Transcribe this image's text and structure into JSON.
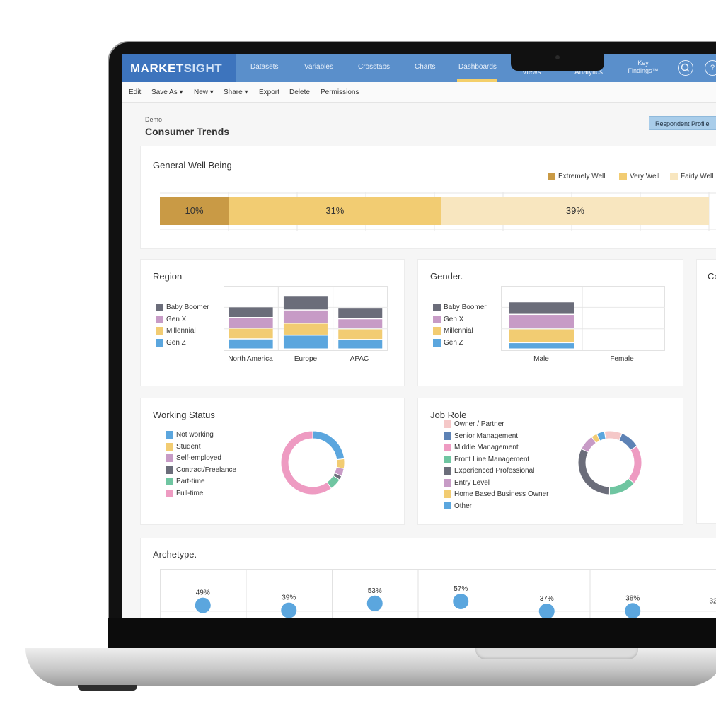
{
  "nav": {
    "brand_part1": "MARKET",
    "brand_part2": "SIGHT",
    "items": [
      "Datasets",
      "Variables",
      "Crosstabs",
      "Charts",
      "Dashboards",
      "Views",
      "Analytics"
    ],
    "key_findings_line1": "Key",
    "key_findings_line2": "Findings™",
    "search_icon": "search-icon",
    "help_icon": "help-icon"
  },
  "toolbar": {
    "items": [
      "Edit",
      "Save As ▾",
      "New ▾",
      "Share ▾",
      "Export",
      "Delete",
      "Permissions"
    ]
  },
  "header": {
    "breadcrumb": "Demo",
    "title": "Consumer Trends",
    "respondent_profile": "Respondent Profile"
  },
  "wellbeing": {
    "title": "General Well Being",
    "legend": [
      "Extremely Well",
      "Very Well",
      "Fairly Well"
    ],
    "segments": [
      {
        "label": "10%",
        "value": 10,
        "color": "#c99a45"
      },
      {
        "label": "31%",
        "value": 31,
        "color": "#f2cc72"
      },
      {
        "label": "39%",
        "value": 39,
        "color": "#f8e6bf"
      }
    ]
  },
  "region": {
    "title": "Region",
    "legend": [
      "Baby Boomer",
      "Gen X",
      "Millennial",
      "Gen Z"
    ],
    "categories": [
      "North America",
      "Europe",
      "APAC"
    ]
  },
  "gender": {
    "title": "Gender.",
    "legend": [
      "Baby Boomer",
      "Gen X",
      "Millennial",
      "Gen Z"
    ],
    "categories": [
      "Male",
      "Female"
    ]
  },
  "cut_panel": {
    "title": "Co"
  },
  "working": {
    "title": "Working Status",
    "legend": [
      "Not working",
      "Student",
      "Self-employed",
      "Contract/Freelance",
      "Part-time",
      "Full-time"
    ]
  },
  "jobrole": {
    "title": "Job Role",
    "legend": [
      "Owner / Partner",
      "Senior Management",
      "Middle Management",
      "Front Line Management",
      "Experienced Professional",
      "Entry Level",
      "Home Based Business Owner",
      "Other"
    ]
  },
  "archetype": {
    "title": "Archetype.",
    "labels": [
      "49%",
      "39%",
      "53%",
      "57%",
      "37%",
      "38%",
      "32"
    ]
  },
  "colors": {
    "baby_boomer": "#6b6d7a",
    "gen_x": "#c79bc6",
    "millennial": "#f2cc72",
    "gen_z": "#5ba6de",
    "nav": "#5a8fcb",
    "brand": "#3d74bd"
  },
  "chart_data": [
    {
      "type": "bar",
      "title": "General Well Being",
      "categories": [
        "Extremely Well",
        "Very Well",
        "Fairly Well"
      ],
      "values": [
        10,
        31,
        39
      ]
    },
    {
      "type": "bar",
      "title": "Region",
      "categories": [
        "North America",
        "Europe",
        "APAC"
      ],
      "series": [
        {
          "name": "Gen Z",
          "values": [
            0.16,
            0.22,
            0.15
          ]
        },
        {
          "name": "Millennial",
          "values": [
            0.17,
            0.19,
            0.17
          ]
        },
        {
          "name": "Gen X",
          "values": [
            0.17,
            0.21,
            0.16
          ]
        },
        {
          "name": "Baby Boomer",
          "values": [
            0.17,
            0.22,
            0.17
          ]
        }
      ]
    },
    {
      "type": "bar",
      "title": "Gender.",
      "categories": [
        "Male",
        "Female"
      ],
      "series": [
        {
          "name": "Gen Z",
          "values": [
            0.1,
            0
          ]
        },
        {
          "name": "Millennial",
          "values": [
            0.22,
            0
          ]
        },
        {
          "name": "Gen X",
          "values": [
            0.23,
            0
          ]
        },
        {
          "name": "Baby Boomer",
          "values": [
            0.2,
            0
          ]
        }
      ]
    },
    {
      "type": "pie",
      "title": "Working Status",
      "categories": [
        "Not working",
        "Student",
        "Self-employed",
        "Contract/Freelance",
        "Part-time",
        "Full-time"
      ],
      "values": [
        23,
        5,
        4,
        2,
        6,
        60
      ],
      "colors": [
        "#5ba6de",
        "#f2cc72",
        "#c79bc6",
        "#6b6d7a",
        "#6fc5a1",
        "#ee9bc2"
      ]
    },
    {
      "type": "pie",
      "title": "Job Role",
      "categories": [
        "Owner / Partner",
        "Senior Management",
        "Middle Management",
        "Front Line Management",
        "Experienced Professional",
        "Entry Level",
        "Home Based Business Owner",
        "Other"
      ],
      "values": [
        9,
        10,
        20,
        14,
        32,
        8,
        3,
        4
      ],
      "colors": [
        "#f5c8c8",
        "#5d82b5",
        "#ee9bc2",
        "#6fc5a1",
        "#6b6d7a",
        "#c79bc6",
        "#f2cc72",
        "#5ba6de"
      ]
    },
    {
      "type": "scatter",
      "title": "Archetype.",
      "values": [
        49,
        39,
        53,
        57,
        37,
        38,
        32
      ]
    }
  ]
}
